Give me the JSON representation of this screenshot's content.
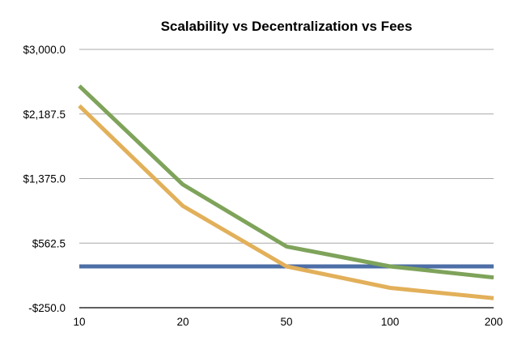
{
  "chart_data": {
    "type": "line",
    "title": "Scalability vs Decentralization vs Fees",
    "xlabel": "",
    "ylabel": "",
    "categories": [
      "10",
      "20",
      "50",
      "100",
      "200"
    ],
    "y_ticks": [
      "$3,000.0",
      "$2,187.5",
      "$1,375.0",
      "$562.5",
      "-$250.0"
    ],
    "y_tick_values": [
      3000,
      2187.5,
      1375,
      562.5,
      -250
    ],
    "ylim": [
      -250,
      3000
    ],
    "grid": true,
    "legend": "none",
    "series": [
      {
        "color": "#7ea35a",
        "values": [
          2540,
          1300,
          520,
          270,
          130
        ]
      },
      {
        "color": "#e2b05a",
        "values": [
          2290,
          1030,
          270,
          0,
          -130
        ]
      },
      {
        "color": "#4d6ea6",
        "values": [
          270,
          270,
          270,
          270,
          270
        ]
      }
    ]
  }
}
